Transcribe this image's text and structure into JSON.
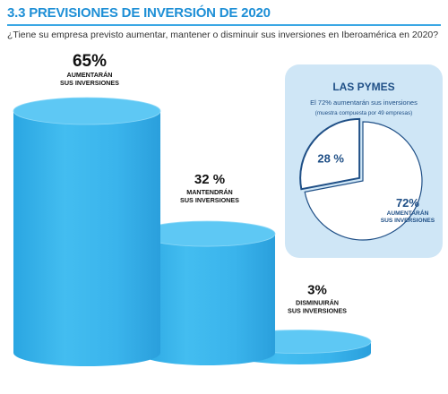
{
  "header": {
    "title": "3.3 PREVISIONES DE INVERSIÓN DE 2020",
    "question": "¿Tiene su empresa previsto aumentar, mantener o disminuir sus inversiones en Iberoamérica en 2020?"
  },
  "chart_data": [
    {
      "type": "bar",
      "categories": [
        "Aumentarán sus inversiones",
        "Mantendrán sus inversiones",
        "Disminuirán sus inversiones"
      ],
      "values": [
        65,
        32,
        3
      ],
      "value_labels": [
        "65%",
        "32 %",
        "3%"
      ],
      "category_labels": [
        [
          "AUMENTARÁN",
          "SUS INVERSIONES"
        ],
        [
          "MANTENDRÁN",
          "SUS INVERSIONES"
        ],
        [
          "DISMINUIRÁN",
          "SUS INVERSIONES"
        ]
      ],
      "bar_color": "#3bb6ec",
      "ylim": [
        0,
        65
      ]
    },
    {
      "type": "pie",
      "title": "LAS PYMES",
      "subtitle": "El 72% aumentarán sus inversiones",
      "note": "(muestra compuesta por 49 empresas)",
      "slices": [
        {
          "label": "",
          "value": 28,
          "value_label": "28 %",
          "color": "#ffffff",
          "exploded": true
        },
        {
          "label": "AUMENTARÁN SUS INVERSIONES",
          "label_lines": [
            "AUMENTARÁN",
            "SUS INVERSIONES"
          ],
          "value": 72,
          "value_label": "72%",
          "color": "#ffffff"
        }
      ],
      "panel_color": "#cfe6f6",
      "outline_color": "#1f4f86"
    }
  ]
}
